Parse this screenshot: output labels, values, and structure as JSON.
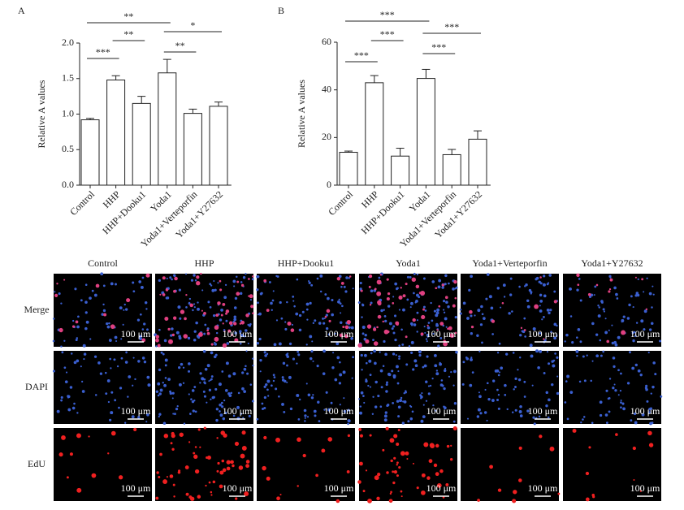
{
  "chart_data": [
    {
      "type": "bar",
      "label": "A",
      "y_label": "Relative A values",
      "categories": [
        "Control",
        "HHP",
        "HHP+Dooku1",
        "Yoda1",
        "Yoda1+Verteporfin",
        "Yoda1+Y27632"
      ],
      "values": [
        0.92,
        1.48,
        1.15,
        1.58,
        1.01,
        1.11
      ],
      "errors": [
        0.02,
        0.06,
        0.1,
        0.19,
        0.06,
        0.06
      ],
      "color": "#ffffff",
      "ylim": [
        0,
        2.0
      ],
      "yticks": [
        {
          "value": 0,
          "label": "0.0"
        },
        {
          "value": 0.5,
          "label": "0.5"
        },
        {
          "value": 1,
          "label": "1.0"
        },
        {
          "value": 1.5,
          "label": "1.5"
        },
        {
          "value": 2,
          "label": "2.0"
        }
      ],
      "annotations": [
        "***",
        "**",
        "**",
        "**",
        "*"
      ]
    },
    {
      "type": "bar",
      "label": "B",
      "y_label": "Relative A values",
      "categories": [
        "Control",
        "HHP",
        "HHP+Dooku1",
        "Yoda1",
        "Yoda1+Verteporfin",
        "Yoda1+Y27632"
      ],
      "values": [
        13.8,
        43,
        12.2,
        44.8,
        12.8,
        19.3
      ],
      "errors": [
        0.5,
        3,
        3.3,
        3.8,
        2.2,
        3.5
      ],
      "color": "#ffffff",
      "ylim": [
        0,
        60
      ],
      "yticks": [
        0,
        20,
        40,
        60
      ],
      "annotations": [
        "***",
        "***",
        "***",
        "***",
        "***"
      ]
    }
  ],
  "image_panel": {
    "columns": [
      "Control",
      "HHP",
      "HHP+Dooku1",
      "Yoda1",
      "Yoda1+Verteporfin",
      "Yoda1+Y27632"
    ],
    "rows": [
      "Merge",
      "DAPI",
      "EdU"
    ],
    "scale_bar": "100 μm"
  }
}
